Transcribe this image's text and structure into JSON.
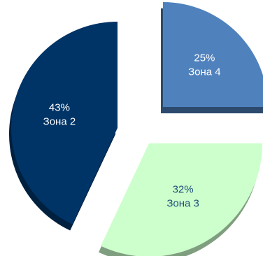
{
  "chart_data": {
    "type": "pie",
    "style": "exploded-3d",
    "slices": [
      {
        "name": "Зона 4",
        "value": 25,
        "percent_label": "25%",
        "color": "#4f81bd",
        "edge_color": "#2c4a6e",
        "text_color": "#ffffff"
      },
      {
        "name": "Зона 3",
        "value": 32,
        "percent_label": "32%",
        "color": "#ccffcc",
        "edge_color": "#7f9e7f",
        "text_color": "#1f4e79"
      },
      {
        "name": "Зона 2",
        "value": 43,
        "percent_label": "43%",
        "color": "#003366",
        "edge_color": "#00203f",
        "text_color": "#ffffff"
      }
    ]
  }
}
